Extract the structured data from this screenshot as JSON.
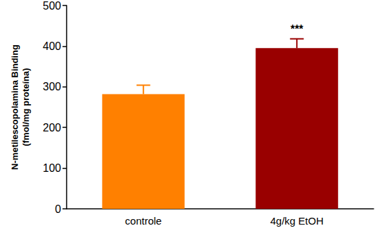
{
  "chart_data": {
    "type": "bar",
    "ylabel": "N-metilescopolamina Binding\n(fmol/mg proteína)",
    "categories": [
      "controle",
      "4g/kg EtOH"
    ],
    "values": [
      282,
      395
    ],
    "errors": [
      22,
      23
    ],
    "colors": [
      "#ff8000",
      "#990000"
    ],
    "ylim": [
      0,
      500
    ],
    "yticks": [
      0,
      100,
      200,
      300,
      400,
      500
    ],
    "grid": false,
    "annotations": [
      {
        "text": "***",
        "category": "4g/kg EtOH"
      }
    ]
  }
}
